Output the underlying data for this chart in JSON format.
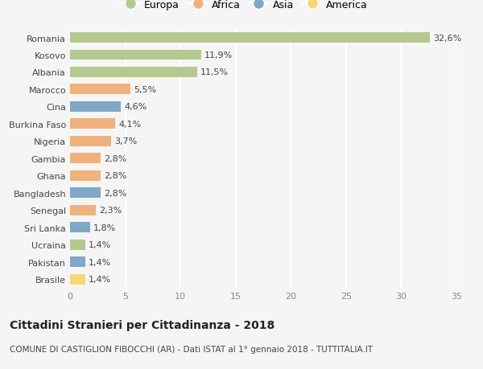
{
  "countries": [
    "Romania",
    "Kosovo",
    "Albania",
    "Marocco",
    "Cina",
    "Burkina Faso",
    "Nigeria",
    "Gambia",
    "Ghana",
    "Bangladesh",
    "Senegal",
    "Sri Lanka",
    "Ucraina",
    "Pakistan",
    "Brasile"
  ],
  "values": [
    32.6,
    11.9,
    11.5,
    5.5,
    4.6,
    4.1,
    3.7,
    2.8,
    2.8,
    2.8,
    2.3,
    1.8,
    1.4,
    1.4,
    1.4
  ],
  "labels": [
    "32,6%",
    "11,9%",
    "11,5%",
    "5,5%",
    "4,6%",
    "4,1%",
    "3,7%",
    "2,8%",
    "2,8%",
    "2,8%",
    "2,3%",
    "1,8%",
    "1,4%",
    "1,4%",
    "1,4%"
  ],
  "continents": [
    "Europa",
    "Europa",
    "Europa",
    "Africa",
    "Asia",
    "Africa",
    "Africa",
    "Africa",
    "Africa",
    "Asia",
    "Africa",
    "Asia",
    "Europa",
    "Asia",
    "America"
  ],
  "continent_colors": {
    "Europa": "#b5c98e",
    "Africa": "#f0b27a",
    "Asia": "#7fa8c9",
    "America": "#f7d870"
  },
  "legend_order": [
    "Europa",
    "Africa",
    "Asia",
    "America"
  ],
  "title": "Cittadini Stranieri per Cittadinanza - 2018",
  "subtitle": "COMUNE DI CASTIGLION FIBOCCHI (AR) - Dati ISTAT al 1° gennaio 2018 - TUTTITALIA.IT",
  "xlim": [
    0,
    35
  ],
  "xticks": [
    0,
    5,
    10,
    15,
    20,
    25,
    30,
    35
  ],
  "background_color": "#f5f5f5",
  "grid_color": "#ffffff",
  "bar_height": 0.6,
  "label_fontsize": 8,
  "tick_fontsize": 8,
  "title_fontsize": 10,
  "subtitle_fontsize": 7.5
}
